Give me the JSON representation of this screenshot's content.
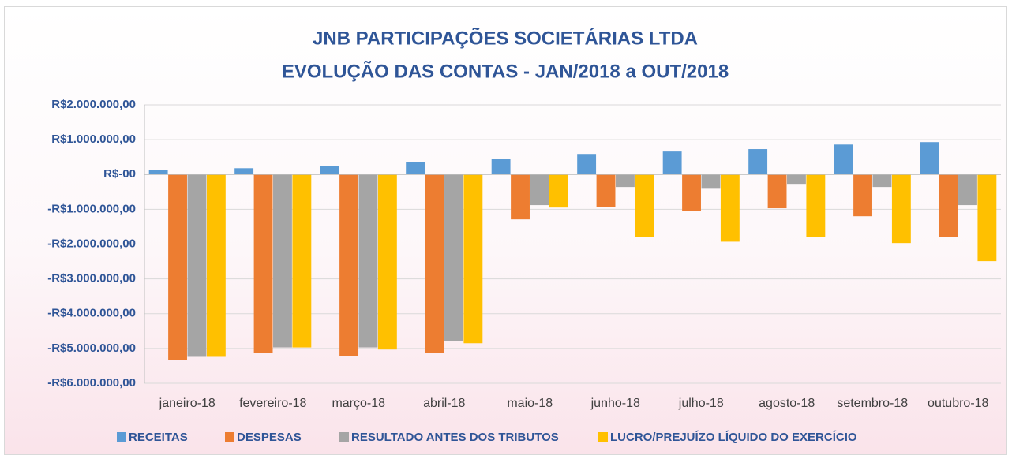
{
  "chart_data": {
    "type": "bar",
    "title": [
      "JNB PARTICIPAÇÕES SOCIETÁRIAS LTDA",
      "EVOLUÇÃO DAS CONTAS - JAN/2018 a OUT/2018"
    ],
    "categories": [
      "janeiro-18",
      "fevereiro-18",
      "março-18",
      "abril-18",
      "maio-18",
      "junho-18",
      "julho-18",
      "agosto-18",
      "setembro-18",
      "outubro-18"
    ],
    "series": [
      {
        "name": "RECEITAS",
        "color": "#5b9bd5",
        "values": [
          140000,
          180000,
          250000,
          360000,
          450000,
          590000,
          660000,
          730000,
          860000,
          930000
        ]
      },
      {
        "name": "DESPESAS",
        "color": "#ed7d31",
        "values": [
          -5330000,
          -5120000,
          -5220000,
          -5120000,
          -1290000,
          -930000,
          -1040000,
          -970000,
          -1200000,
          -1790000
        ]
      },
      {
        "name": "RESULTADO ANTES DOS TRIBUTOS",
        "color": "#a5a5a5",
        "values": [
          -5240000,
          -4970000,
          -4970000,
          -4790000,
          -880000,
          -360000,
          -410000,
          -270000,
          -360000,
          -880000
        ]
      },
      {
        "name": "LUCRO/PREJUÍZO LÍQUIDO DO EXERCÍCIO",
        "color": "#ffc000",
        "values": [
          -5240000,
          -4970000,
          -5030000,
          -4850000,
          -950000,
          -1790000,
          -1930000,
          -1790000,
          -1970000,
          -2490000
        ]
      }
    ],
    "ylim": [
      -6000000,
      2000000
    ],
    "yticks": [
      {
        "value": -6000000,
        "label": "-R$6.000.000,00"
      },
      {
        "value": -5000000,
        "label": "-R$5.000.000,00"
      },
      {
        "value": -4000000,
        "label": "-R$4.000.000,00"
      },
      {
        "value": -3000000,
        "label": "-R$3.000.000,00"
      },
      {
        "value": -2000000,
        "label": "-R$2.000.000,00"
      },
      {
        "value": -1000000,
        "label": "-R$1.000.000,00"
      },
      {
        "value": 0,
        "label": "R$-00"
      },
      {
        "value": 1000000,
        "label": "R$1.000.000,00"
      },
      {
        "value": 2000000,
        "label": "R$2.000.000,00"
      }
    ],
    "grid": true,
    "legend": "bottom"
  }
}
